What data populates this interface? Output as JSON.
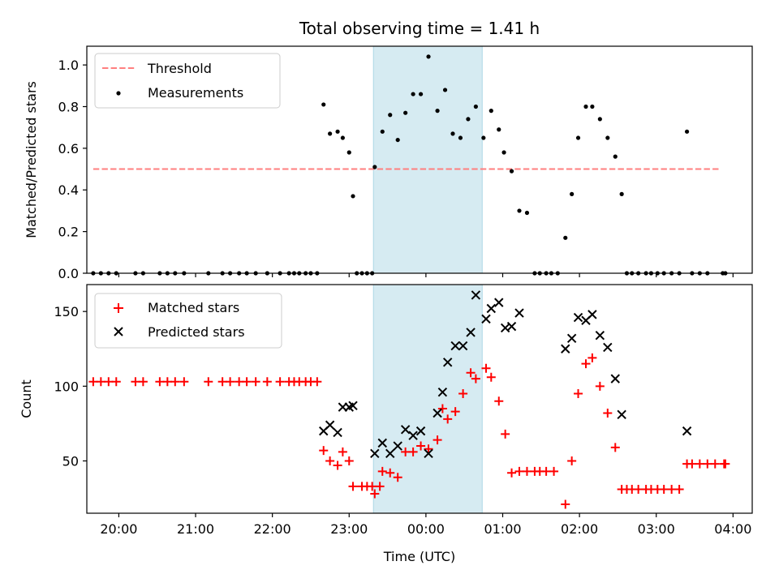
{
  "chart_data": [
    {
      "type": "scatter",
      "title": "Total observing time = 1.41 h",
      "xlabel": "",
      "ylabel": "Matched/Predicted stars",
      "xlim": [
        "19:35",
        "04:15"
      ],
      "ylim": [
        0,
        1.09
      ],
      "yticks": [
        "0.0",
        "0.2",
        "0.4",
        "0.6",
        "0.8",
        "1.0"
      ],
      "shaded_interval": [
        "23:19",
        "00:44"
      ],
      "legend": {
        "placement": "top-left",
        "entries": [
          "Threshold",
          "Measurements"
        ]
      },
      "threshold": {
        "name": "Threshold",
        "value": 0.5,
        "x": [
          "19:40",
          "03:50"
        ],
        "color": "#ff7f7f",
        "style": "dashed"
      },
      "measurements": {
        "name": "Measurements",
        "color": "#000000",
        "points": [
          [
            "19:40",
            0
          ],
          [
            "19:46",
            0
          ],
          [
            "19:52",
            0
          ],
          [
            "19:58",
            0
          ],
          [
            "20:13",
            0
          ],
          [
            "20:19",
            0
          ],
          [
            "20:32",
            0
          ],
          [
            "20:38",
            0
          ],
          [
            "20:44",
            0
          ],
          [
            "20:51",
            0
          ],
          [
            "21:10",
            0
          ],
          [
            "21:21",
            0
          ],
          [
            "21:27",
            0
          ],
          [
            "21:34",
            0
          ],
          [
            "21:40",
            0
          ],
          [
            "21:47",
            0
          ],
          [
            "21:56",
            0
          ],
          [
            "22:06",
            0
          ],
          [
            "22:13",
            0
          ],
          [
            "22:17",
            0
          ],
          [
            "22:21",
            0
          ],
          [
            "22:26",
            0
          ],
          [
            "22:30",
            0
          ],
          [
            "22:35",
            0
          ],
          [
            "22:40",
            0.81
          ],
          [
            "22:45",
            0.67
          ],
          [
            "22:51",
            0.68
          ],
          [
            "22:55",
            0.65
          ],
          [
            "23:00",
            0.58
          ],
          [
            "23:03",
            0.37
          ],
          [
            "23:06",
            0
          ],
          [
            "23:10",
            0
          ],
          [
            "23:14",
            0
          ],
          [
            "23:18",
            0
          ],
          [
            "23:20",
            0.51
          ],
          [
            "23:26",
            0.68
          ],
          [
            "23:32",
            0.76
          ],
          [
            "23:38",
            0.64
          ],
          [
            "23:44",
            0.77
          ],
          [
            "23:50",
            0.86
          ],
          [
            "23:56",
            0.86
          ],
          [
            "00:02",
            1.04
          ],
          [
            "00:09",
            0.78
          ],
          [
            "00:15",
            0.88
          ],
          [
            "00:21",
            0.67
          ],
          [
            "00:27",
            0.65
          ],
          [
            "00:33",
            0.74
          ],
          [
            "00:39",
            0.8
          ],
          [
            "00:45",
            0.65
          ],
          [
            "00:51",
            0.78
          ],
          [
            "00:57",
            0.69
          ],
          [
            "01:01",
            0.58
          ],
          [
            "01:07",
            0.49
          ],
          [
            "01:13",
            0.3
          ],
          [
            "01:19",
            0.29
          ],
          [
            "01:25",
            0
          ],
          [
            "01:29",
            0
          ],
          [
            "01:34",
            0
          ],
          [
            "01:38",
            0
          ],
          [
            "01:43",
            0
          ],
          [
            "01:49",
            0.17
          ],
          [
            "01:54",
            0.38
          ],
          [
            "01:59",
            0.65
          ],
          [
            "02:05",
            0.8
          ],
          [
            "02:10",
            0.8
          ],
          [
            "02:16",
            0.74
          ],
          [
            "02:22",
            0.65
          ],
          [
            "02:28",
            0.56
          ],
          [
            "02:33",
            0.38
          ],
          [
            "02:37",
            0
          ],
          [
            "02:41",
            0
          ],
          [
            "02:46",
            0
          ],
          [
            "02:52",
            0
          ],
          [
            "02:56",
            0
          ],
          [
            "03:01",
            0
          ],
          [
            "03:06",
            0
          ],
          [
            "03:12",
            0
          ],
          [
            "03:18",
            0
          ],
          [
            "03:24",
            0.68
          ],
          [
            "03:28",
            0
          ],
          [
            "03:34",
            0
          ],
          [
            "03:40",
            0
          ],
          [
            "03:52",
            0
          ],
          [
            "03:54",
            0
          ]
        ]
      }
    },
    {
      "type": "scatter",
      "title": "",
      "xlabel": "Time (UTC)",
      "ylabel": "Count",
      "xlim": [
        "19:35",
        "04:15"
      ],
      "ylim": [
        15,
        168
      ],
      "yticks": [
        "50",
        "100",
        "150"
      ],
      "xticks": [
        "20:00",
        "21:00",
        "22:00",
        "23:00",
        "00:00",
        "01:00",
        "02:00",
        "03:00",
        "04:00"
      ],
      "shaded_interval": [
        "23:19",
        "00:44"
      ],
      "legend": {
        "placement": "top-left",
        "entries": [
          "Matched stars",
          "Predicted stars"
        ]
      },
      "matched": {
        "name": "Matched stars",
        "color": "#ff0000",
        "points": [
          [
            "19:40",
            103
          ],
          [
            "19:46",
            103
          ],
          [
            "19:52",
            103
          ],
          [
            "19:58",
            103
          ],
          [
            "20:13",
            103
          ],
          [
            "20:19",
            103
          ],
          [
            "20:32",
            103
          ],
          [
            "20:38",
            103
          ],
          [
            "20:44",
            103
          ],
          [
            "20:51",
            103
          ],
          [
            "21:10",
            103
          ],
          [
            "21:21",
            103
          ],
          [
            "21:27",
            103
          ],
          [
            "21:34",
            103
          ],
          [
            "21:40",
            103
          ],
          [
            "21:47",
            103
          ],
          [
            "21:56",
            103
          ],
          [
            "22:06",
            103
          ],
          [
            "22:13",
            103
          ],
          [
            "22:17",
            103
          ],
          [
            "22:21",
            103
          ],
          [
            "22:26",
            103
          ],
          [
            "22:30",
            103
          ],
          [
            "22:35",
            103
          ],
          [
            "22:40",
            57
          ],
          [
            "22:45",
            50
          ],
          [
            "22:51",
            47
          ],
          [
            "22:55",
            56
          ],
          [
            "23:00",
            50
          ],
          [
            "23:03",
            33
          ],
          [
            "23:10",
            33
          ],
          [
            "23:14",
            33
          ],
          [
            "23:18",
            33
          ],
          [
            "23:24",
            33
          ],
          [
            "23:20",
            28
          ],
          [
            "23:26",
            43
          ],
          [
            "23:32",
            42
          ],
          [
            "23:38",
            39
          ],
          [
            "23:44",
            56
          ],
          [
            "23:50",
            56
          ],
          [
            "23:56",
            60
          ],
          [
            "00:02",
            58
          ],
          [
            "00:09",
            64
          ],
          [
            "00:13",
            85
          ],
          [
            "00:17",
            78
          ],
          [
            "00:23",
            83
          ],
          [
            "00:29",
            95
          ],
          [
            "00:35",
            109
          ],
          [
            "00:39",
            105
          ],
          [
            "00:47",
            112
          ],
          [
            "00:51",
            106
          ],
          [
            "00:57",
            90
          ],
          [
            "01:02",
            68
          ],
          [
            "01:07",
            42
          ],
          [
            "01:13",
            43
          ],
          [
            "01:19",
            43
          ],
          [
            "01:25",
            43
          ],
          [
            "01:29",
            43
          ],
          [
            "01:34",
            43
          ],
          [
            "01:40",
            43
          ],
          [
            "01:49",
            21
          ],
          [
            "01:54",
            50
          ],
          [
            "01:59",
            95
          ],
          [
            "02:05",
            115
          ],
          [
            "02:10",
            119
          ],
          [
            "02:16",
            100
          ],
          [
            "02:22",
            82
          ],
          [
            "02:28",
            59
          ],
          [
            "02:33",
            31
          ],
          [
            "02:37",
            31
          ],
          [
            "02:41",
            31
          ],
          [
            "02:46",
            31
          ],
          [
            "02:52",
            31
          ],
          [
            "02:56",
            31
          ],
          [
            "03:01",
            31
          ],
          [
            "03:06",
            31
          ],
          [
            "03:12",
            31
          ],
          [
            "03:18",
            31
          ],
          [
            "03:24",
            48
          ],
          [
            "03:28",
            48
          ],
          [
            "03:34",
            48
          ],
          [
            "03:40",
            48
          ],
          [
            "03:46",
            48
          ],
          [
            "03:53",
            48
          ],
          [
            "03:54",
            48
          ]
        ]
      },
      "predicted": {
        "name": "Predicted stars",
        "color": "#000000",
        "points": [
          [
            "22:40",
            70
          ],
          [
            "22:45",
            74
          ],
          [
            "22:51",
            69
          ],
          [
            "22:55",
            86
          ],
          [
            "23:00",
            86
          ],
          [
            "23:03",
            87
          ],
          [
            "23:20",
            55
          ],
          [
            "23:26",
            62
          ],
          [
            "23:32",
            55
          ],
          [
            "23:38",
            60
          ],
          [
            "23:44",
            71
          ],
          [
            "23:50",
            67
          ],
          [
            "23:56",
            70
          ],
          [
            "00:02",
            55
          ],
          [
            "00:09",
            82
          ],
          [
            "00:13",
            96
          ],
          [
            "00:17",
            116
          ],
          [
            "00:23",
            127
          ],
          [
            "00:29",
            127
          ],
          [
            "00:35",
            136
          ],
          [
            "00:39",
            161
          ],
          [
            "00:47",
            145
          ],
          [
            "00:51",
            152
          ],
          [
            "00:57",
            156
          ],
          [
            "01:02",
            139
          ],
          [
            "01:07",
            140
          ],
          [
            "01:13",
            149
          ],
          [
            "01:49",
            125
          ],
          [
            "01:54",
            132
          ],
          [
            "01:59",
            146
          ],
          [
            "02:05",
            144
          ],
          [
            "02:10",
            148
          ],
          [
            "02:16",
            134
          ],
          [
            "02:22",
            126
          ],
          [
            "02:28",
            105
          ],
          [
            "02:33",
            81
          ],
          [
            "03:24",
            70
          ]
        ]
      }
    }
  ]
}
